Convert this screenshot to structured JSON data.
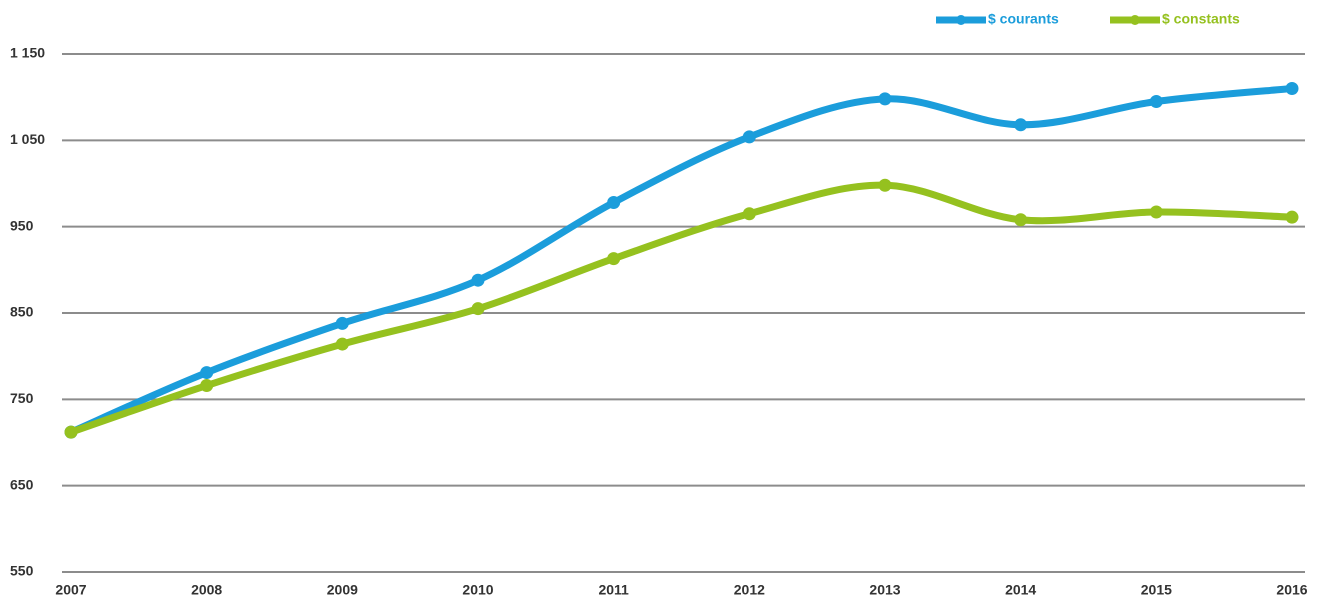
{
  "chart_data": {
    "type": "line",
    "categories": [
      "2007",
      "2008",
      "2009",
      "2010",
      "2011",
      "2012",
      "2013",
      "2014",
      "2015",
      "2016"
    ],
    "series": [
      {
        "name": "$ courants",
        "color": "#1b9ddb",
        "values": [
          712,
          781,
          838,
          888,
          978,
          1054,
          1098,
          1068,
          1095,
          1110
        ]
      },
      {
        "name": "$ constants",
        "color": "#95c11f",
        "values": [
          712,
          766,
          814,
          855,
          913,
          965,
          998,
          958,
          967,
          961
        ]
      }
    ],
    "ylim": [
      550,
      1150
    ],
    "yticks": [
      550,
      650,
      750,
      850,
      950,
      {
        "value": 1050,
        "label": "1 050"
      },
      {
        "value": 1150,
        "label": "1 150"
      }
    ],
    "grid": true,
    "legend": "top-right"
  }
}
